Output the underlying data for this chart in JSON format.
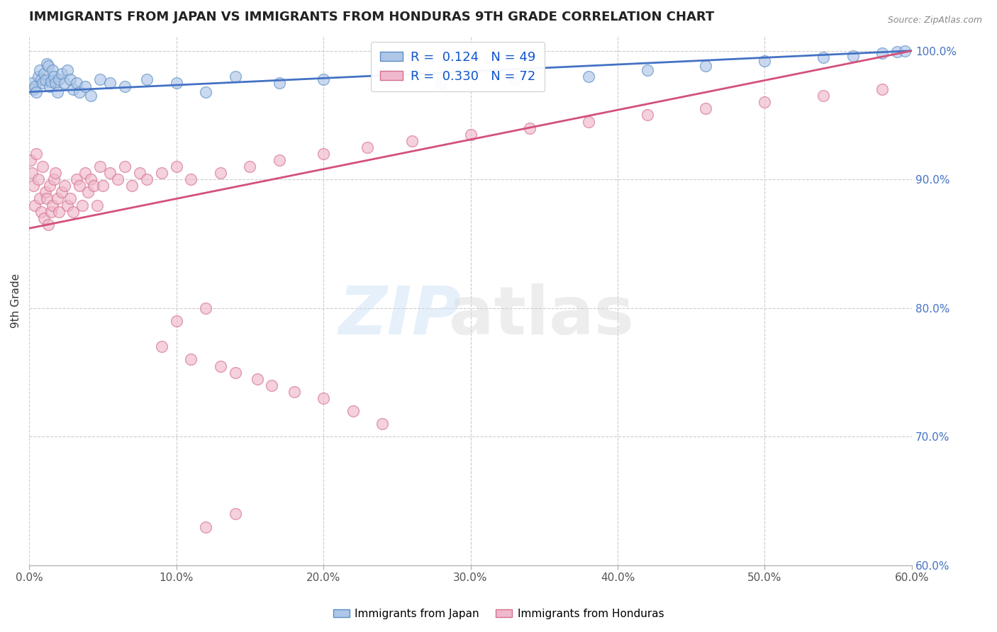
{
  "title": "IMMIGRANTS FROM JAPAN VS IMMIGRANTS FROM HONDURAS 9TH GRADE CORRELATION CHART",
  "source": "Source: ZipAtlas.com",
  "ylabel": "9th Grade",
  "xlim": [
    0.0,
    0.6
  ],
  "ylim": [
    0.6,
    1.012
  ],
  "xticks": [
    0.0,
    0.1,
    0.2,
    0.3,
    0.4,
    0.5,
    0.6
  ],
  "xticklabels": [
    "0.0%",
    "10.0%",
    "20.0%",
    "30.0%",
    "40.0%",
    "50.0%",
    "60.0%"
  ],
  "yticks": [
    0.6,
    0.7,
    0.8,
    0.9,
    1.0
  ],
  "yticklabels": [
    "60.0%",
    "70.0%",
    "80.0%",
    "90.0%",
    "100.0%"
  ],
  "japan_color": "#aec6e8",
  "japan_edge_color": "#5b8ec4",
  "honduras_color": "#f0b8cc",
  "honduras_edge_color": "#d4708a",
  "japan_line_color": "#4472C4",
  "honduras_line_color": "#d4507a",
  "japan_label": "Immigrants from Japan",
  "honduras_label": "Immigrants from Honduras",
  "watermark_zip": "ZIP",
  "watermark_atlas": "atlas",
  "japan_x": [
    0.002,
    0.003,
    0.004,
    0.005,
    0.006,
    0.007,
    0.008,
    0.009,
    0.01,
    0.011,
    0.012,
    0.013,
    0.014,
    0.015,
    0.016,
    0.017,
    0.018,
    0.019,
    0.02,
    0.022,
    0.024,
    0.026,
    0.028,
    0.03,
    0.032,
    0.034,
    0.038,
    0.042,
    0.048,
    0.055,
    0.065,
    0.08,
    0.1,
    0.12,
    0.14,
    0.17,
    0.2,
    0.24,
    0.28,
    0.33,
    0.38,
    0.42,
    0.46,
    0.5,
    0.54,
    0.56,
    0.58,
    0.59,
    0.595
  ],
  "japan_y": [
    0.975,
    0.97,
    0.972,
    0.968,
    0.98,
    0.985,
    0.978,
    0.975,
    0.982,
    0.977,
    0.99,
    0.988,
    0.972,
    0.976,
    0.985,
    0.98,
    0.975,
    0.968,
    0.978,
    0.982,
    0.975,
    0.985,
    0.978,
    0.97,
    0.975,
    0.968,
    0.972,
    0.965,
    0.978,
    0.975,
    0.972,
    0.978,
    0.975,
    0.968,
    0.98,
    0.975,
    0.978,
    0.982,
    0.975,
    0.978,
    0.98,
    0.985,
    0.988,
    0.992,
    0.995,
    0.996,
    0.998,
    0.999,
    1.0
  ],
  "honduras_x": [
    0.001,
    0.002,
    0.003,
    0.004,
    0.005,
    0.006,
    0.007,
    0.008,
    0.009,
    0.01,
    0.011,
    0.012,
    0.013,
    0.014,
    0.015,
    0.016,
    0.017,
    0.018,
    0.019,
    0.02,
    0.022,
    0.024,
    0.026,
    0.028,
    0.03,
    0.032,
    0.034,
    0.036,
    0.038,
    0.04,
    0.042,
    0.044,
    0.046,
    0.048,
    0.05,
    0.055,
    0.06,
    0.065,
    0.07,
    0.075,
    0.08,
    0.09,
    0.1,
    0.11,
    0.13,
    0.15,
    0.17,
    0.2,
    0.23,
    0.26,
    0.3,
    0.34,
    0.38,
    0.42,
    0.46,
    0.5,
    0.54,
    0.58,
    0.1,
    0.12,
    0.09,
    0.11,
    0.13,
    0.14,
    0.155,
    0.165,
    0.18,
    0.2,
    0.22,
    0.24,
    0.12,
    0.14
  ],
  "honduras_y": [
    0.915,
    0.905,
    0.895,
    0.88,
    0.92,
    0.9,
    0.885,
    0.875,
    0.91,
    0.87,
    0.89,
    0.885,
    0.865,
    0.895,
    0.875,
    0.88,
    0.9,
    0.905,
    0.885,
    0.875,
    0.89,
    0.895,
    0.88,
    0.885,
    0.875,
    0.9,
    0.895,
    0.88,
    0.905,
    0.89,
    0.9,
    0.895,
    0.88,
    0.91,
    0.895,
    0.905,
    0.9,
    0.91,
    0.895,
    0.905,
    0.9,
    0.905,
    0.91,
    0.9,
    0.905,
    0.91,
    0.915,
    0.92,
    0.925,
    0.93,
    0.935,
    0.94,
    0.945,
    0.95,
    0.955,
    0.96,
    0.965,
    0.97,
    0.79,
    0.8,
    0.77,
    0.76,
    0.755,
    0.75,
    0.745,
    0.74,
    0.735,
    0.73,
    0.72,
    0.71,
    0.63,
    0.64
  ],
  "japan_line_x0": 0.0,
  "japan_line_y0": 0.968,
  "japan_line_x1": 0.6,
  "japan_line_y1": 1.0,
  "honduras_line_x0": 0.0,
  "honduras_line_y0": 0.862,
  "honduras_line_x1": 0.6,
  "honduras_line_y1": 1.0
}
